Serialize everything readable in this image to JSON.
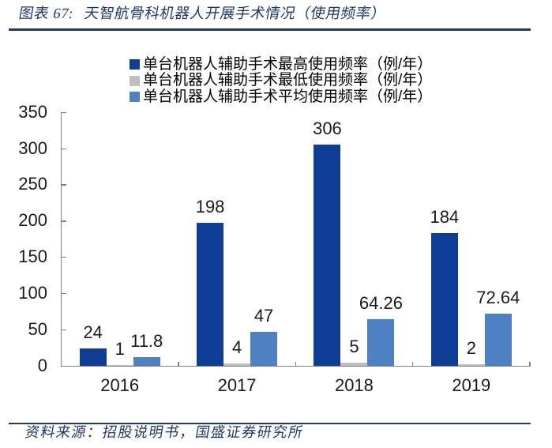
{
  "header": {
    "figure_label": "图表 67:",
    "title": "天智航骨科机器人开展手术情况（使用频率）"
  },
  "footer": {
    "source": "资料来源：招股说明书，国盛证券研究所"
  },
  "colors": {
    "accent_navy": "#1F3864",
    "series_max_blue": "#0D3D94",
    "series_min_gray": "#BFBFBF",
    "series_avg_blue": "#4E80C4",
    "axis_gray": "#808080",
    "label_text": "#1a1a1a"
  },
  "chart_data": {
    "type": "bar",
    "title": "天智航骨科机器人开展手术情况（使用频率）",
    "categories": [
      "2016",
      "2017",
      "2018",
      "2019"
    ],
    "series": [
      {
        "name": "单台机器人辅助手术最高使用频率（例/年）",
        "color": "#0D3D94",
        "values": [
          24,
          198,
          306,
          184
        ],
        "labels": [
          "24",
          "198",
          "306",
          "184"
        ]
      },
      {
        "name": "单台机器人辅助手术最低使用频率（例/年）",
        "color": "#BFBFBF",
        "values": [
          1,
          4,
          5,
          2
        ],
        "labels": [
          "1",
          "4",
          "5",
          "2"
        ]
      },
      {
        "name": "单台机器人辅助手术平均使用频率（例/年）",
        "color": "#4E80C4",
        "values": [
          11.8,
          47,
          64.26,
          72.64
        ],
        "labels": [
          "11.8",
          "47",
          "64.26",
          "72.64"
        ]
      }
    ],
    "ylim": [
      0,
      350
    ],
    "ytick_interval": 50,
    "yticks": [
      0,
      50,
      100,
      150,
      200,
      250,
      300,
      350
    ],
    "grid": false,
    "legend_position": "top",
    "value_labels": true
  }
}
